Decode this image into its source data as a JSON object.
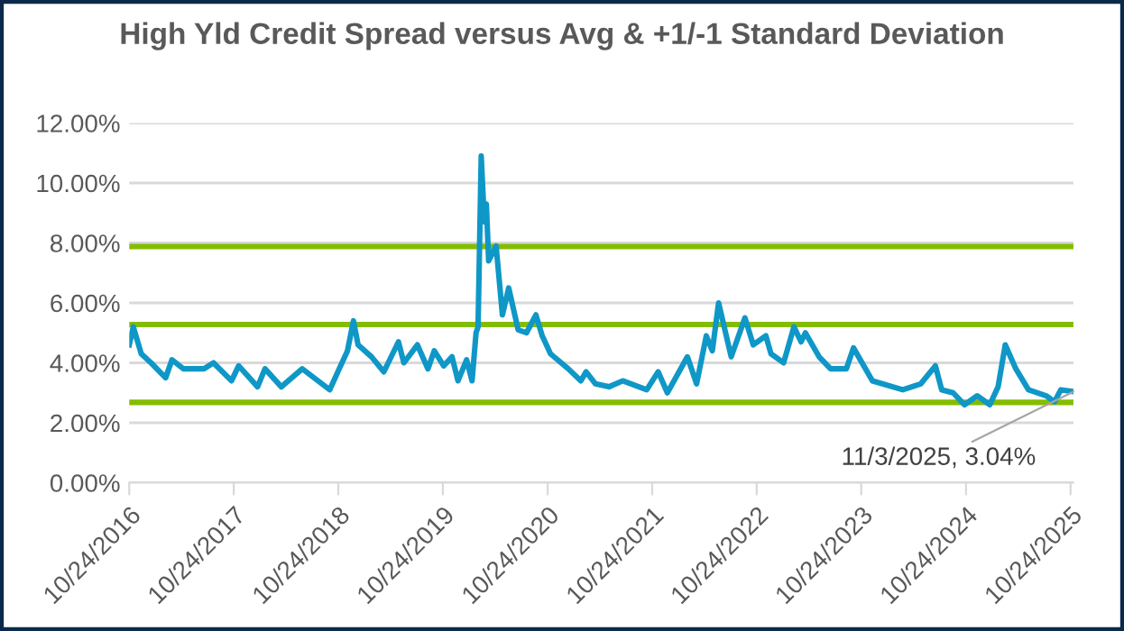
{
  "chart_data": {
    "type": "line",
    "title": "High Yld Credit Spread versus Avg & +1/-1 Standard Deviation",
    "ylim": [
      0,
      12
    ],
    "yticks": [
      {
        "value": 0,
        "label": "0.00%"
      },
      {
        "value": 2,
        "label": "2.00%"
      },
      {
        "value": 4,
        "label": "4.00%"
      },
      {
        "value": 6,
        "label": "6.00%"
      },
      {
        "value": 8,
        "label": "8.00%"
      },
      {
        "value": 10,
        "label": "10.00%"
      },
      {
        "value": 12,
        "label": "12.00%"
      }
    ],
    "xlim": [
      "2016-10-24",
      "2025-11-03"
    ],
    "xticks": [
      {
        "value": "2016-10-24",
        "label": "10/24/2016"
      },
      {
        "value": "2017-10-24",
        "label": "10/24/2017"
      },
      {
        "value": "2018-10-24",
        "label": "10/24/2018"
      },
      {
        "value": "2019-10-24",
        "label": "10/24/2019"
      },
      {
        "value": "2020-10-24",
        "label": "10/24/2020"
      },
      {
        "value": "2021-10-24",
        "label": "10/24/2021"
      },
      {
        "value": "2022-10-24",
        "label": "10/24/2022"
      },
      {
        "value": "2023-10-24",
        "label": "10/24/2023"
      },
      {
        "value": "2024-10-24",
        "label": "10/24/2024"
      },
      {
        "value": "2025-10-24",
        "label": "10/24/2025"
      }
    ],
    "grid": "y",
    "series": [
      {
        "color": "#0f97c7",
        "x": [
          "2016-10-24",
          "2016-11-07",
          "2016-12-05",
          "2017-01-08",
          "2017-02-28",
          "2017-03-22",
          "2017-05-01",
          "2017-07-12",
          "2017-08-14",
          "2017-10-16",
          "2017-11-10",
          "2018-01-15",
          "2018-02-10",
          "2018-04-08",
          "2018-06-20",
          "2018-09-24",
          "2018-10-27",
          "2018-11-25",
          "2018-12-16",
          "2019-01-01",
          "2019-02-17",
          "2019-04-01",
          "2019-05-22",
          "2019-06-10",
          "2019-07-27",
          "2019-09-02",
          "2019-09-24",
          "2019-10-27",
          "2019-11-25",
          "2019-12-16",
          "2020-01-15",
          "2020-02-03",
          "2020-02-17",
          "2020-02-24",
          "2020-03-06",
          "2020-03-17",
          "2020-03-24",
          "2020-04-01",
          "2020-04-27",
          "2020-05-19",
          "2020-06-10",
          "2020-07-13",
          "2020-08-11",
          "2020-09-13",
          "2020-10-05",
          "2020-11-03",
          "2021-01-04",
          "2021-02-17",
          "2021-03-07",
          "2021-04-09",
          "2021-05-26",
          "2021-07-13",
          "2021-10-05",
          "2021-11-14",
          "2021-12-16",
          "2022-02-24",
          "2022-03-28",
          "2022-05-01",
          "2022-05-22",
          "2022-06-13",
          "2022-07-27",
          "2022-09-13",
          "2022-10-12",
          "2022-11-25",
          "2022-12-13",
          "2023-01-26",
          "2023-03-03",
          "2023-03-28",
          "2023-04-12",
          "2023-05-30",
          "2023-07-09",
          "2023-09-02",
          "2023-09-27",
          "2023-12-02",
          "2024-03-17",
          "2024-05-19",
          "2024-07-09",
          "2024-07-31",
          "2024-09-09",
          "2024-10-19",
          "2024-12-02",
          "2025-01-15",
          "2025-02-13",
          "2025-03-10",
          "2025-04-16",
          "2025-05-30",
          "2025-07-31",
          "2025-08-29",
          "2025-09-20",
          "2025-11-03"
        ],
        "values": [
          4.6,
          5.2,
          4.3,
          4.0,
          3.5,
          4.1,
          3.8,
          3.8,
          4.0,
          3.4,
          3.9,
          3.2,
          3.8,
          3.2,
          3.8,
          3.1,
          3.8,
          4.4,
          5.4,
          4.6,
          4.2,
          3.7,
          4.7,
          4.0,
          4.6,
          3.8,
          4.4,
          3.9,
          4.2,
          3.4,
          4.1,
          3.4,
          5.0,
          5.2,
          10.9,
          8.7,
          9.3,
          7.4,
          7.9,
          5.6,
          6.5,
          5.1,
          5.0,
          5.6,
          4.9,
          4.3,
          3.8,
          3.4,
          3.7,
          3.3,
          3.2,
          3.4,
          3.1,
          3.7,
          3.0,
          4.2,
          3.3,
          4.9,
          4.4,
          6.0,
          4.2,
          5.5,
          4.6,
          4.9,
          4.3,
          4.0,
          5.2,
          4.7,
          5.0,
          4.2,
          3.8,
          3.8,
          4.5,
          3.4,
          3.1,
          3.3,
          3.9,
          3.1,
          3.0,
          2.6,
          2.9,
          2.6,
          3.2,
          4.6,
          3.8,
          3.1,
          2.9,
          2.7,
          3.1,
          3.04
        ]
      }
    ],
    "ref_lines": [
      {
        "axis": "y",
        "value": 7.88,
        "color": "#84bd00"
      },
      {
        "axis": "y",
        "value": 5.28,
        "color": "#84bd00"
      },
      {
        "axis": "y",
        "value": 2.68,
        "color": "#84bd00"
      }
    ],
    "annotations": [
      {
        "text": "11/3/2025, 3.04%",
        "x": "2025-11-03",
        "y": 3.04
      }
    ]
  }
}
